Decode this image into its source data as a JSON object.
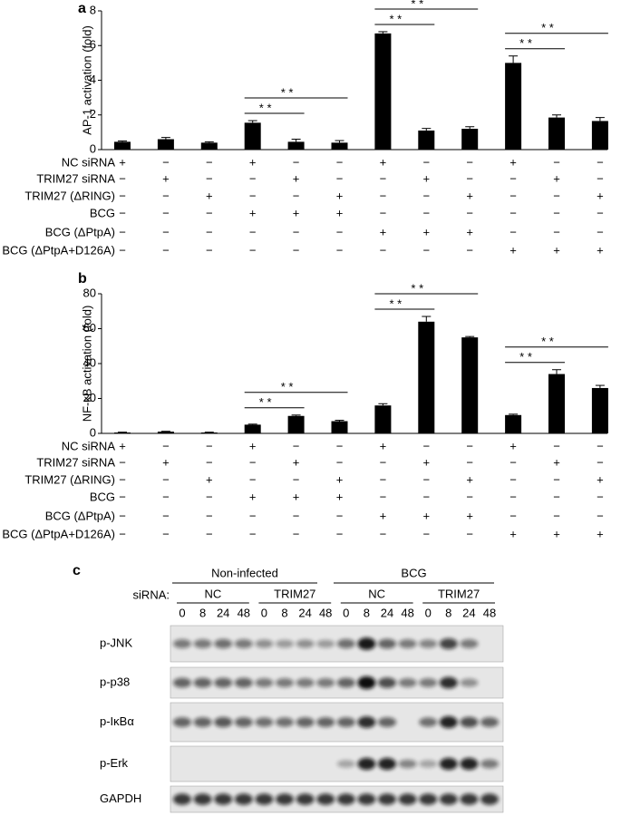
{
  "chart_data": [
    {
      "type": "bar",
      "panel": "a",
      "ylabel": "AP-1 activation (fold)",
      "color": "#000000",
      "ylim": [
        0,
        8
      ],
      "yticks": [
        0,
        2,
        4,
        6,
        8
      ],
      "values": [
        0.45,
        0.6,
        0.4,
        1.55,
        0.45,
        0.4,
        6.7,
        1.1,
        1.2,
        5.0,
        1.85,
        1.65
      ],
      "errors": [
        0.05,
        0.1,
        0.05,
        0.12,
        0.15,
        0.12,
        0.1,
        0.12,
        0.12,
        0.4,
        0.15,
        0.2
      ],
      "annotations": [
        {
          "text": "* *",
          "from": 3,
          "to": 4
        },
        {
          "text": "* *",
          "from": 3,
          "to": 5
        },
        {
          "text": "* *",
          "from": 6,
          "to": 7
        },
        {
          "text": "* *",
          "from": 6,
          "to": 8
        },
        {
          "text": "* *",
          "from": 9,
          "to": 10
        },
        {
          "text": "* *",
          "from": 9,
          "to": 11
        }
      ],
      "conditions": [
        {
          "label": "NC siRNA",
          "signs": [
            "+",
            "−",
            "−",
            "+",
            "−",
            "−",
            "+",
            "−",
            "−",
            "+",
            "−",
            "−"
          ]
        },
        {
          "label": "TRIM27 siRNA",
          "signs": [
            "−",
            "+",
            "−",
            "−",
            "+",
            "−",
            "−",
            "+",
            "−",
            "−",
            "+",
            "−"
          ]
        },
        {
          "label": "TRIM27 (ΔRING)",
          "signs": [
            "−",
            "−",
            "+",
            "−",
            "−",
            "+",
            "−",
            "−",
            "+",
            "−",
            "−",
            "+"
          ]
        },
        {
          "label": "BCG",
          "signs": [
            "−",
            "−",
            "−",
            "+",
            "+",
            "+",
            "−",
            "−",
            "−",
            "−",
            "−",
            "−"
          ]
        },
        {
          "label": "BCG (ΔPtpA)",
          "signs": [
            "−",
            "−",
            "−",
            "−",
            "−",
            "−",
            "+",
            "+",
            "+",
            "−",
            "−",
            "−"
          ]
        },
        {
          "label": "BCG (ΔPtpA+D126A)",
          "signs": [
            "−",
            "−",
            "−",
            "−",
            "−",
            "−",
            "−",
            "−",
            "−",
            "+",
            "+",
            "+"
          ]
        }
      ]
    },
    {
      "type": "bar",
      "panel": "b",
      "ylabel": "NF-κB activation (fold)",
      "color": "#000000",
      "ylim": [
        0,
        80
      ],
      "yticks": [
        0,
        20,
        40,
        60,
        80
      ],
      "values": [
        0.5,
        1,
        0.5,
        5,
        10,
        7,
        16,
        64,
        55,
        10.5,
        34,
        26
      ],
      "errors": [
        0.2,
        0.2,
        0.2,
        0.3,
        0.5,
        0.5,
        1,
        3,
        0.5,
        0.5,
        2.5,
        1.5
      ],
      "annotations": [
        {
          "text": "* *",
          "from": 3,
          "to": 4
        },
        {
          "text": "* *",
          "from": 3,
          "to": 5
        },
        {
          "text": "* *",
          "from": 6,
          "to": 7
        },
        {
          "text": "* *",
          "from": 6,
          "to": 8
        },
        {
          "text": "* *",
          "from": 9,
          "to": 10
        },
        {
          "text": "* *",
          "from": 9,
          "to": 11
        }
      ],
      "conditions": [
        {
          "label": "NC siRNA",
          "signs": [
            "+",
            "−",
            "−",
            "+",
            "−",
            "−",
            "+",
            "−",
            "−",
            "+",
            "−",
            "−"
          ]
        },
        {
          "label": "TRIM27 siRNA",
          "signs": [
            "−",
            "+",
            "−",
            "−",
            "+",
            "−",
            "−",
            "+",
            "−",
            "−",
            "+",
            "−"
          ]
        },
        {
          "label": "TRIM27 (ΔRING)",
          "signs": [
            "−",
            "−",
            "+",
            "−",
            "−",
            "+",
            "−",
            "−",
            "+",
            "−",
            "−",
            "+"
          ]
        },
        {
          "label": "BCG",
          "signs": [
            "−",
            "−",
            "−",
            "+",
            "+",
            "+",
            "−",
            "−",
            "−",
            "−",
            "−",
            "−"
          ]
        },
        {
          "label": "BCG (ΔPtpA)",
          "signs": [
            "−",
            "−",
            "−",
            "−",
            "−",
            "−",
            "+",
            "+",
            "+",
            "−",
            "−",
            "−"
          ]
        },
        {
          "label": "BCG (ΔPtpA+D126A)",
          "signs": [
            "−",
            "−",
            "−",
            "−",
            "−",
            "−",
            "−",
            "−",
            "−",
            "+",
            "+",
            "+"
          ]
        }
      ]
    }
  ],
  "blot": {
    "panel": "c",
    "row_label": "siRNA:",
    "groups": [
      "Non-infected",
      "BCG"
    ],
    "subgroups": [
      "NC",
      "TRIM27",
      "NC",
      "TRIM27"
    ],
    "times": [
      "0",
      "8",
      "24",
      "48",
      "0",
      "8",
      "24",
      "48",
      "0",
      "8",
      "24",
      "48",
      "0",
      "8",
      "24",
      "48"
    ],
    "proteins": [
      "p-JNK",
      "p-p38",
      "p-IκBα",
      "p-Erk",
      "GAPDH"
    ]
  }
}
